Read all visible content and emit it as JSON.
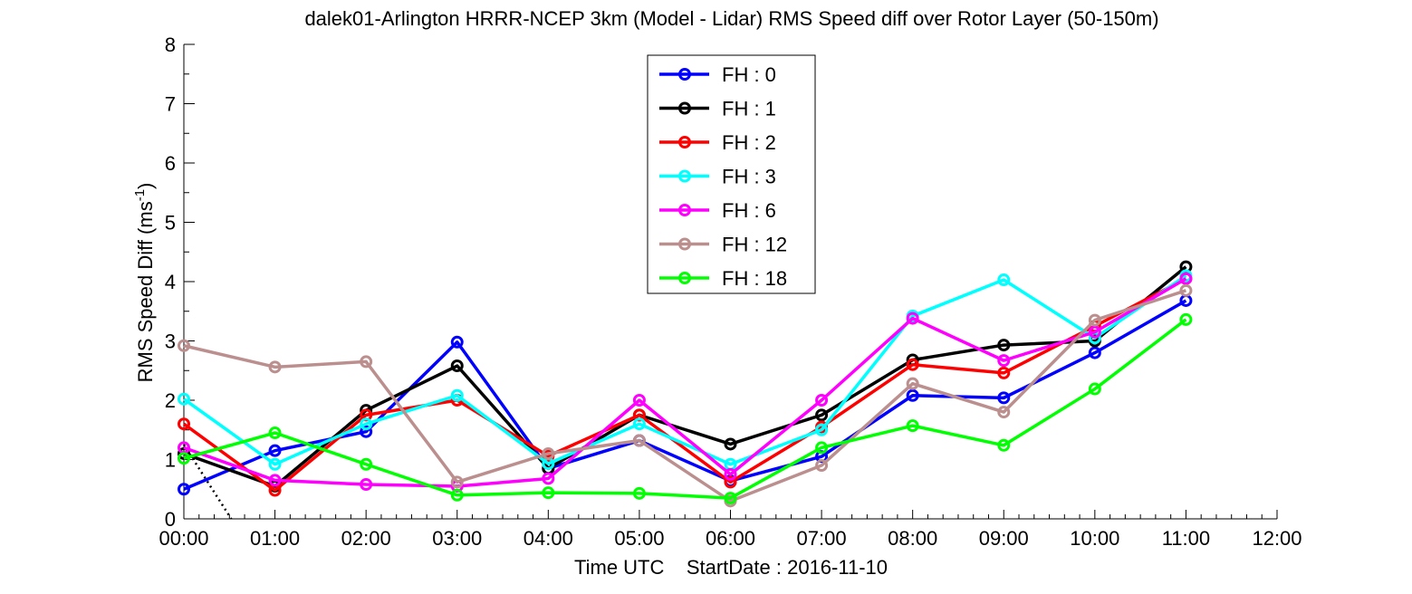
{
  "chart_data": {
    "type": "line",
    "title": "dalek01-Arlington HRRR-NCEP 3km (Model - Lidar) RMS Speed diff over Rotor Layer (50-150m)",
    "xlabel": "Time UTC    StartDate : 2016-11-10",
    "ylabel_main": "RMS Speed Diff (ms",
    "ylabel_sup": "-1",
    "ylabel_close": ")",
    "x": [
      "00:00",
      "01:00",
      "02:00",
      "03:00",
      "04:00",
      "05:00",
      "06:00",
      "07:00",
      "08:00",
      "09:00",
      "10:00",
      "11:00"
    ],
    "x_ticks": [
      "00:00",
      "01:00",
      "02:00",
      "03:00",
      "04:00",
      "05:00",
      "06:00",
      "07:00",
      "08:00",
      "09:00",
      "10:00",
      "11:00",
      "12:00"
    ],
    "y_ticks": [
      "0",
      "1",
      "2",
      "3",
      "4",
      "5",
      "6",
      "7",
      "8"
    ],
    "xlim": [
      0,
      12
    ],
    "ylim": [
      0,
      8
    ],
    "grid": false,
    "legend_position": "top-center",
    "series": [
      {
        "name": "FH : 0",
        "color": "#0000ff",
        "values": [
          0.5,
          1.15,
          1.47,
          2.98,
          0.85,
          1.32,
          0.64,
          1.05,
          2.08,
          2.04,
          2.8,
          3.68
        ]
      },
      {
        "name": "FH : 1",
        "color": "#000000",
        "values": [
          1.1,
          0.55,
          1.83,
          2.58,
          0.85,
          1.75,
          1.26,
          1.75,
          2.68,
          2.93,
          3.0,
          4.25
        ]
      },
      {
        "name": "FH : 2",
        "color": "#ff0000",
        "values": [
          1.6,
          0.48,
          1.75,
          2.0,
          1.06,
          1.75,
          0.62,
          1.55,
          2.6,
          2.46,
          3.25,
          4.05
        ]
      },
      {
        "name": "FH : 3",
        "color": "#00ffff",
        "values": [
          2.02,
          0.92,
          1.6,
          2.08,
          0.93,
          1.6,
          0.92,
          1.5,
          3.42,
          4.03,
          3.05,
          4.1
        ]
      },
      {
        "name": "FH : 6",
        "color": "#ff00ff",
        "values": [
          1.2,
          0.65,
          0.58,
          0.55,
          0.68,
          2.0,
          0.75,
          2.0,
          3.38,
          2.67,
          3.15,
          4.05
        ]
      },
      {
        "name": "FH : 12",
        "color": "#bc8f8f",
        "values": [
          2.92,
          2.56,
          2.65,
          0.62,
          1.1,
          1.32,
          0.3,
          0.9,
          2.28,
          1.8,
          3.35,
          3.85
        ]
      },
      {
        "name": "FH : 18",
        "color": "#00ff00",
        "values": [
          1.02,
          1.45,
          0.92,
          0.4,
          0.44,
          0.43,
          0.35,
          1.2,
          1.57,
          1.24,
          2.19,
          3.36
        ]
      }
    ],
    "reference_line": {
      "style": "dotted",
      "color": "#000000",
      "x": [
        0.0,
        0.52
      ],
      "y": [
        1.25,
        0.0
      ]
    }
  }
}
